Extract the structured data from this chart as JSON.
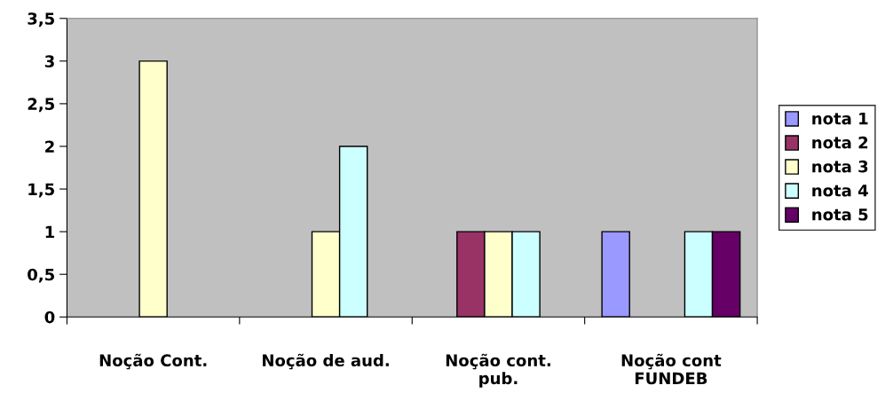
{
  "chart_data": {
    "type": "bar",
    "categories": [
      "Noção Cont.",
      "Noção de aud.",
      "Noção cont.\npub.",
      "Noção cont\nFUNDEB"
    ],
    "series": [
      {
        "name": "nota 1",
        "color": "#9999ff",
        "values": [
          null,
          null,
          null,
          1
        ]
      },
      {
        "name": "nota 2",
        "color": "#993366",
        "values": [
          null,
          null,
          1,
          null
        ]
      },
      {
        "name": "nota 3",
        "color": "#ffffcc",
        "values": [
          3,
          1,
          1,
          null
        ]
      },
      {
        "name": "nota 4",
        "color": "#ccffff",
        "values": [
          null,
          2,
          1,
          1
        ]
      },
      {
        "name": "nota 5",
        "color": "#660066",
        "values": [
          null,
          null,
          null,
          1
        ]
      }
    ],
    "ylim": [
      0,
      3.5
    ],
    "yticks": [
      0,
      {
        "value": 0.5,
        "label": "0,5"
      },
      1,
      {
        "value": 1.5,
        "label": "1,5"
      },
      2,
      {
        "value": 2.5,
        "label": "2,5"
      },
      3,
      {
        "value": 3.5,
        "label": "3,5"
      }
    ],
    "grid": false,
    "legend": "right"
  }
}
